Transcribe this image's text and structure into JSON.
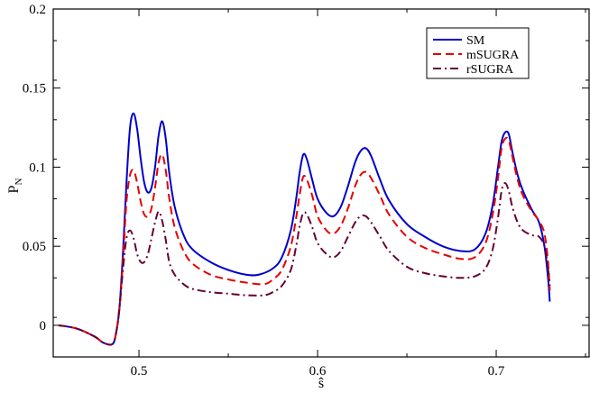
{
  "chart_data": {
    "type": "line",
    "title": "",
    "xlabel": "ŝ",
    "ylabel": "P_N",
    "ylabel_main": "P",
    "ylabel_sub": "N",
    "xlim": [
      0.452,
      0.752
    ],
    "ylim": [
      -0.02,
      0.2
    ],
    "xticks": [
      0.5,
      0.6,
      0.7
    ],
    "xtick_labels": [
      "0.5",
      "0.6",
      "0.7"
    ],
    "yticks": [
      0,
      0.05,
      0.1,
      0.15,
      0.2
    ],
    "ytick_labels": [
      "0",
      "0.05",
      "0.1",
      "0.15",
      "0.2"
    ],
    "grid": false,
    "legend_position": "top-right",
    "series": [
      {
        "name": "SM",
        "color": "#0000cc",
        "dash": "solid",
        "x": [
          0.455,
          0.465,
          0.475,
          0.48,
          0.485,
          0.487,
          0.489,
          0.491,
          0.493,
          0.495,
          0.497,
          0.499,
          0.501,
          0.503,
          0.505,
          0.507,
          0.509,
          0.511,
          0.513,
          0.515,
          0.517,
          0.52,
          0.525,
          0.53,
          0.54,
          0.55,
          0.56,
          0.567,
          0.575,
          0.58,
          0.585,
          0.588,
          0.59,
          0.592,
          0.594,
          0.597,
          0.6,
          0.605,
          0.609,
          0.613,
          0.617,
          0.621,
          0.624,
          0.627,
          0.63,
          0.635,
          0.64,
          0.65,
          0.66,
          0.67,
          0.68,
          0.688,
          0.694,
          0.698,
          0.701,
          0.703,
          0.705,
          0.707,
          0.709,
          0.712,
          0.715,
          0.72,
          0.724,
          0.727,
          0.729,
          0.73
        ],
        "y": [
          0.0,
          -0.002,
          -0.007,
          -0.011,
          -0.012,
          -0.006,
          0.01,
          0.045,
          0.09,
          0.125,
          0.134,
          0.124,
          0.105,
          0.09,
          0.084,
          0.087,
          0.1,
          0.12,
          0.129,
          0.118,
          0.096,
          0.075,
          0.057,
          0.048,
          0.04,
          0.035,
          0.032,
          0.032,
          0.036,
          0.043,
          0.06,
          0.08,
          0.097,
          0.108,
          0.105,
          0.092,
          0.08,
          0.071,
          0.069,
          0.075,
          0.088,
          0.103,
          0.11,
          0.112,
          0.107,
          0.092,
          0.079,
          0.064,
          0.056,
          0.05,
          0.047,
          0.048,
          0.058,
          0.076,
          0.1,
          0.116,
          0.122,
          0.121,
          0.11,
          0.095,
          0.085,
          0.073,
          0.065,
          0.05,
          0.03,
          0.015
        ]
      },
      {
        "name": "mSUGRA",
        "color": "#e60000",
        "dash": "9,5",
        "x": [
          0.455,
          0.465,
          0.475,
          0.48,
          0.485,
          0.487,
          0.489,
          0.491,
          0.493,
          0.495,
          0.497,
          0.499,
          0.501,
          0.503,
          0.505,
          0.507,
          0.509,
          0.511,
          0.513,
          0.515,
          0.517,
          0.52,
          0.525,
          0.53,
          0.54,
          0.55,
          0.56,
          0.57,
          0.575,
          0.58,
          0.585,
          0.588,
          0.59,
          0.592,
          0.594,
          0.597,
          0.6,
          0.605,
          0.609,
          0.613,
          0.617,
          0.621,
          0.624,
          0.627,
          0.63,
          0.635,
          0.64,
          0.65,
          0.66,
          0.67,
          0.68,
          0.688,
          0.694,
          0.698,
          0.701,
          0.703,
          0.705,
          0.707,
          0.709,
          0.712,
          0.715,
          0.72,
          0.724,
          0.727,
          0.729,
          0.73
        ],
        "y": [
          0.0,
          -0.002,
          -0.007,
          -0.011,
          -0.012,
          -0.006,
          0.01,
          0.04,
          0.078,
          0.095,
          0.098,
          0.09,
          0.078,
          0.07,
          0.069,
          0.074,
          0.087,
          0.103,
          0.108,
          0.098,
          0.08,
          0.062,
          0.047,
          0.039,
          0.032,
          0.029,
          0.027,
          0.026,
          0.029,
          0.035,
          0.05,
          0.068,
          0.083,
          0.094,
          0.092,
          0.082,
          0.069,
          0.06,
          0.058,
          0.063,
          0.074,
          0.088,
          0.095,
          0.097,
          0.093,
          0.082,
          0.07,
          0.056,
          0.049,
          0.045,
          0.042,
          0.043,
          0.052,
          0.07,
          0.093,
          0.112,
          0.118,
          0.117,
          0.107,
          0.092,
          0.082,
          0.072,
          0.066,
          0.058,
          0.04,
          0.022
        ]
      },
      {
        "name": "rSUGRA",
        "color": "#660033",
        "dash": "9,4,2,4",
        "x": [
          0.455,
          0.465,
          0.475,
          0.48,
          0.485,
          0.487,
          0.489,
          0.491,
          0.493,
          0.495,
          0.497,
          0.499,
          0.501,
          0.503,
          0.505,
          0.507,
          0.509,
          0.511,
          0.513,
          0.515,
          0.517,
          0.52,
          0.525,
          0.53,
          0.54,
          0.55,
          0.56,
          0.57,
          0.575,
          0.58,
          0.585,
          0.588,
          0.59,
          0.592,
          0.594,
          0.597,
          0.6,
          0.605,
          0.609,
          0.613,
          0.617,
          0.621,
          0.624,
          0.627,
          0.63,
          0.635,
          0.64,
          0.65,
          0.66,
          0.67,
          0.68,
          0.688,
          0.694,
          0.698,
          0.701,
          0.703,
          0.705,
          0.707,
          0.709,
          0.712,
          0.715,
          0.72,
          0.724,
          0.727,
          0.729,
          0.73
        ],
        "y": [
          0.0,
          -0.002,
          -0.007,
          -0.011,
          -0.012,
          -0.006,
          0.01,
          0.035,
          0.055,
          0.06,
          0.055,
          0.045,
          0.04,
          0.04,
          0.045,
          0.055,
          0.065,
          0.072,
          0.066,
          0.054,
          0.04,
          0.032,
          0.026,
          0.023,
          0.021,
          0.02,
          0.019,
          0.019,
          0.021,
          0.025,
          0.035,
          0.05,
          0.063,
          0.071,
          0.07,
          0.062,
          0.052,
          0.045,
          0.043,
          0.047,
          0.056,
          0.065,
          0.069,
          0.069,
          0.065,
          0.056,
          0.047,
          0.037,
          0.033,
          0.031,
          0.03,
          0.031,
          0.036,
          0.048,
          0.068,
          0.085,
          0.09,
          0.085,
          0.075,
          0.065,
          0.06,
          0.057,
          0.056,
          0.05,
          0.036,
          0.025
        ]
      }
    ]
  }
}
